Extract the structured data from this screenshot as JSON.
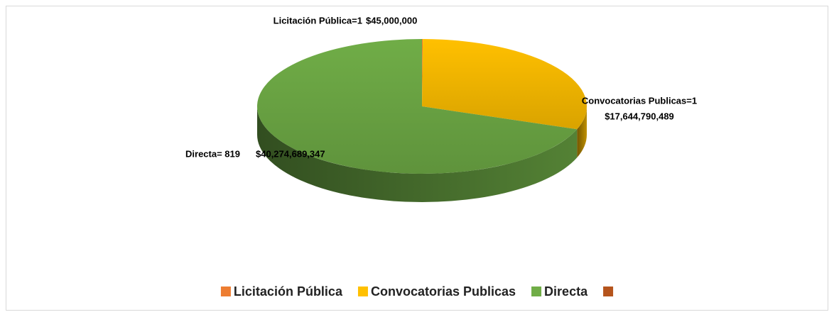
{
  "chart_data": {
    "type": "pie3d",
    "categories": [
      "Licitación Pública",
      "Convocatorias Publicas",
      "Directa",
      null
    ],
    "values": [
      45000000,
      17644790489,
      40274689347,
      null
    ],
    "value_labels": [
      "$45,000,000",
      "$17,644,790,489",
      "$40,274,689,347",
      null
    ],
    "point_labels": [
      "Licitación Pública=1",
      "Convocatorias Publicas=1",
      "Directa= 819",
      null
    ],
    "colors": [
      "#ed7d31",
      "#ffc000",
      "#70ad47",
      "#b5541c"
    ],
    "legend": "bottom"
  }
}
